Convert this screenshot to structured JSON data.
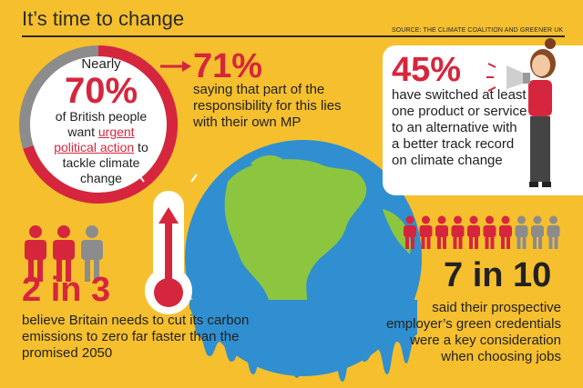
{
  "header": {
    "title": "It’s time to change",
    "source": "SOURCE: THE CLIMATE COALITION AND GREENER UK"
  },
  "stat_70": {
    "prefix": "Nearly",
    "value": "70%",
    "line1": "of British people",
    "line2_pre": "want ",
    "line2_hl": "urgent",
    "line3_hl": "political action",
    "line3_post": " to",
    "line4": "tackle climate",
    "line5": "change",
    "fraction": 0.7
  },
  "stat_71": {
    "value": "71%",
    "text": "saying that part of the responsibility for this lies with their own MP"
  },
  "stat_45": {
    "value": "45%",
    "text": "have switched at least one product or service to an alternative with a better track record on climate change"
  },
  "stat_2in3": {
    "value": "2 in 3",
    "text": "believe Britain needs to cut its carbon emissions to zero far faster than the promised 2050"
  },
  "stat_7in10": {
    "value": "7 in 10",
    "text": "said their prospective employer’s green credentials were a key consideration when choosing jobs"
  },
  "colors": {
    "background": "#f6bf2d",
    "accent_red": "#d6263d",
    "grey": "#8c8c8c",
    "ocean": "#2f8fd0",
    "land": "#8cc63f"
  }
}
